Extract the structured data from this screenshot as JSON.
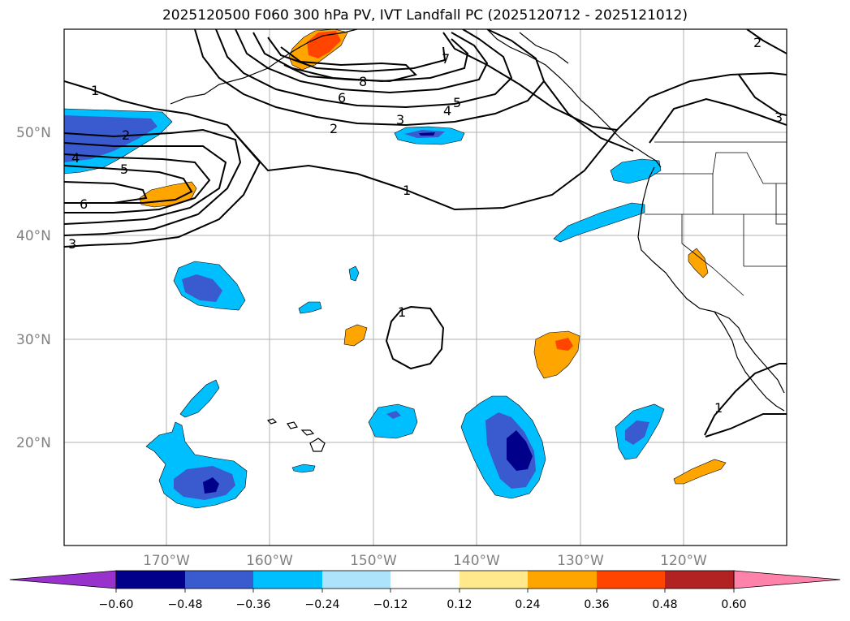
{
  "title": "2025120500 F060 300 hPa PV, IVT Landfall PC (2025120712 - 2025121012)",
  "map": {
    "region": "North Pacific / US West Coast",
    "lat_ticks": [
      "50°N",
      "40°N",
      "30°N",
      "20°N"
    ],
    "lon_ticks": [
      "170°W",
      "160°W",
      "150°W",
      "140°W",
      "130°W",
      "120°W"
    ],
    "contour_labels": [
      "1",
      "2",
      "3",
      "4",
      "5",
      "6",
      "7",
      "8"
    ],
    "gridlines": true
  },
  "colorbar": {
    "ticks": [
      "−0.60",
      "−0.48",
      "−0.36",
      "−0.24",
      "−0.12",
      "0.12",
      "0.24",
      "0.36",
      "0.48",
      "0.60"
    ],
    "colors": [
      "#9932cc",
      "#00008b",
      "#3a5bcf",
      "#00bfff",
      "#aee4fb",
      "#ffffff",
      "#ffe98c",
      "#ffa500",
      "#ff4500",
      "#b22222",
      "#ff82ab"
    ]
  }
}
